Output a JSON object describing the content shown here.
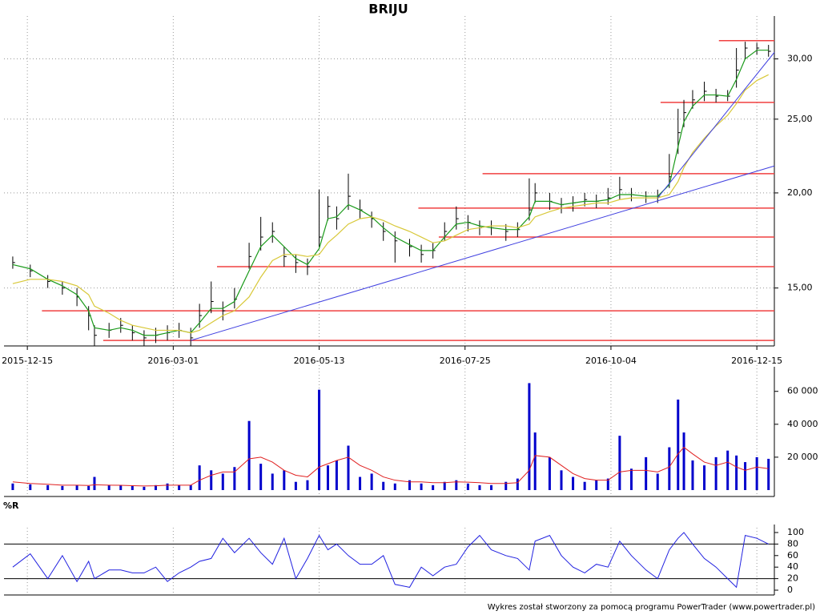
{
  "chart_data": [
    {
      "type": "ohlc",
      "title": "BRIJU",
      "log_scale": true,
      "grid": true,
      "color": "#000000",
      "xlim": [
        -2,
        262
      ],
      "xticks": [
        {
          "value": 6,
          "label": "2015-12-15"
        },
        {
          "value": 56,
          "label": "2016-03-01"
        },
        {
          "value": 106,
          "label": "2016-05-13"
        },
        {
          "value": 156,
          "label": "2016-07-25"
        },
        {
          "value": 206,
          "label": "2016-10-04"
        },
        {
          "value": 256,
          "label": "2016-12-15"
        }
      ],
      "ylim": [
        12.65,
        33.5
      ],
      "yticks": [
        {
          "value": 15,
          "label": "15,00"
        },
        {
          "value": 20,
          "label": "20,00"
        },
        {
          "value": 25,
          "label": "25,00"
        },
        {
          "value": 30,
          "label": "30,00"
        }
      ],
      "x": [
        1,
        7,
        13,
        18,
        23,
        27,
        29,
        34,
        38,
        42,
        46,
        50,
        54,
        58,
        62,
        65,
        69,
        73,
        77,
        82,
        86,
        90,
        94,
        98,
        102,
        106,
        109,
        112,
        116,
        120,
        124,
        128,
        132,
        137,
        141,
        145,
        149,
        153,
        157,
        161,
        165,
        170,
        174,
        178,
        180,
        185,
        189,
        193,
        197,
        201,
        205,
        209,
        213,
        218,
        222,
        226,
        229,
        231,
        234,
        238,
        242,
        246,
        249,
        252,
        256,
        260
      ],
      "high": [
        16.5,
        16.1,
        15.6,
        15.3,
        15.0,
        14.2,
        13.4,
        13.5,
        13.7,
        13.4,
        13.2,
        13.3,
        13.4,
        13.5,
        13.3,
        14.3,
        15.3,
        14.4,
        15.0,
        17.2,
        18.6,
        18.3,
        17.0,
        16.6,
        16.4,
        20.2,
        19.8,
        19.2,
        21.2,
        19.6,
        18.9,
        18.3,
        17.8,
        17.4,
        17.1,
        17.2,
        18.3,
        19.2,
        18.7,
        18.4,
        18.4,
        18.2,
        18.3,
        20.9,
        20.6,
        20.0,
        19.7,
        19.8,
        20.0,
        19.9,
        20.3,
        21.0,
        20.3,
        20.1,
        20.2,
        22.5,
        25.8,
        26.5,
        27.3,
        28.0,
        27.4,
        27.3,
        31.0,
        31.6,
        31.5,
        31.3
      ],
      "low": [
        15.9,
        15.5,
        15.0,
        14.7,
        14.2,
        13.2,
        12.6,
        12.9,
        13.1,
        12.8,
        12.6,
        12.7,
        12.8,
        12.9,
        12.6,
        13.3,
        13.9,
        13.6,
        14.1,
        15.9,
        16.8,
        17.2,
        16.0,
        15.7,
        15.6,
        17.0,
        18.4,
        17.9,
        19.0,
        18.5,
        18.0,
        17.3,
        16.2,
        16.5,
        16.2,
        16.4,
        17.3,
        17.9,
        17.8,
        17.6,
        17.6,
        17.3,
        17.5,
        18.4,
        19.4,
        19.0,
        18.8,
        18.9,
        19.2,
        19.1,
        19.3,
        19.6,
        19.5,
        19.4,
        19.4,
        20.3,
        22.5,
        24.4,
        25.8,
        26.4,
        26.3,
        26.4,
        27.5,
        30.0,
        30.4,
        30.2
      ],
      "close": [
        16.2,
        15.8,
        15.3,
        15.0,
        14.6,
        13.8,
        13.0,
        13.2,
        13.4,
        13.1,
        12.9,
        13.0,
        13.1,
        13.2,
        12.9,
        13.8,
        14.4,
        14.0,
        14.5,
        16.5,
        17.5,
        17.8,
        16.5,
        16.2,
        16.0,
        17.5,
        19.2,
        18.5,
        19.8,
        19.0,
        18.5,
        17.8,
        17.3,
        17.0,
        16.6,
        16.8,
        17.8,
        18.5,
        18.3,
        18.0,
        18.0,
        17.8,
        17.9,
        19.0,
        20.0,
        19.5,
        19.3,
        19.4,
        19.6,
        19.5,
        19.7,
        20.2,
        19.9,
        19.8,
        19.8,
        21.0,
        24.0,
        25.5,
        26.5,
        27.2,
        26.8,
        26.8,
        29.0,
        31.0,
        31.0,
        30.7
      ],
      "moving_averages": [
        {
          "color": "#1a9a1a",
          "values": [
            16.1,
            15.9,
            15.4,
            15.1,
            14.7,
            14.0,
            13.3,
            13.2,
            13.3,
            13.2,
            13.0,
            13.0,
            13.1,
            13.2,
            13.1,
            13.5,
            14.1,
            14.1,
            14.4,
            15.8,
            17.0,
            17.6,
            17.0,
            16.4,
            16.1,
            16.9,
            18.5,
            18.6,
            19.3,
            19.0,
            18.6,
            18.0,
            17.5,
            17.1,
            16.8,
            16.8,
            17.5,
            18.2,
            18.3,
            18.1,
            18.0,
            17.9,
            17.9,
            18.6,
            19.5,
            19.5,
            19.3,
            19.4,
            19.5,
            19.5,
            19.6,
            19.9,
            19.9,
            19.8,
            19.8,
            20.5,
            23.0,
            24.8,
            26.0,
            26.9,
            26.9,
            26.8,
            28.2,
            30.0,
            30.8,
            30.8
          ]
        },
        {
          "color": "#d8c838",
          "values": [
            15.2,
            15.4,
            15.4,
            15.3,
            15.1,
            14.7,
            14.2,
            13.9,
            13.6,
            13.4,
            13.3,
            13.2,
            13.2,
            13.2,
            13.1,
            13.2,
            13.5,
            13.8,
            14.0,
            14.6,
            15.5,
            16.3,
            16.6,
            16.6,
            16.5,
            16.6,
            17.2,
            17.6,
            18.2,
            18.5,
            18.6,
            18.4,
            18.1,
            17.8,
            17.5,
            17.2,
            17.3,
            17.6,
            17.9,
            18.0,
            18.1,
            18.1,
            18.0,
            18.2,
            18.6,
            18.9,
            19.1,
            19.2,
            19.3,
            19.4,
            19.4,
            19.6,
            19.7,
            19.7,
            19.7,
            19.9,
            20.7,
            21.6,
            22.6,
            23.6,
            24.5,
            25.3,
            26.2,
            27.3,
            28.1,
            28.6
          ]
        }
      ],
      "levels": [
        {
          "x": 243,
          "y": 31.7,
          "color": "#f04040"
        },
        {
          "x": 223,
          "y": 26.3,
          "color": "#f04040"
        },
        {
          "x": 162,
          "y": 21.2,
          "color": "#f04040"
        },
        {
          "x": 140,
          "y": 19.1,
          "color": "#f04040"
        },
        {
          "x": 147,
          "y": 17.5,
          "color": "#f04040"
        },
        {
          "x": 71,
          "y": 16.0,
          "color": "#f04040"
        },
        {
          "x": 11,
          "y": 14.0,
          "color": "#f04040"
        },
        {
          "x": 32,
          "y": 12.8,
          "color": "#f04040"
        }
      ],
      "trend_lines": [
        {
          "x": [
            62,
            262
          ],
          "y": [
            12.8,
            21.7
          ],
          "color": "#4040e0"
        },
        {
          "x": [
            222,
            262
          ],
          "y": [
            19.7,
            30.6
          ],
          "color": "#4040e0"
        }
      ]
    },
    {
      "type": "bar",
      "color": "#0000cc",
      "ylim": [
        0,
        73000
      ],
      "yticks": [
        {
          "value": 20000,
          "label": "20 000"
        },
        {
          "value": 40000,
          "label": "40 000"
        },
        {
          "value": 60000,
          "label": "60 000"
        }
      ],
      "values": [
        4000,
        3500,
        3000,
        2500,
        3000,
        2500,
        8000,
        3000,
        3000,
        2500,
        2000,
        3000,
        4000,
        3000,
        3000,
        15000,
        12000,
        10000,
        14000,
        42000,
        16000,
        10000,
        12000,
        5000,
        6000,
        61000,
        15000,
        18000,
        27000,
        8000,
        10000,
        5000,
        4000,
        6000,
        4000,
        3000,
        5000,
        6000,
        4000,
        3000,
        3000,
        5000,
        7000,
        65000,
        35000,
        20000,
        12000,
        8000,
        5000,
        6000,
        7000,
        33000,
        13000,
        20000,
        10000,
        26000,
        55000,
        35000,
        18000,
        15000,
        20000,
        24000,
        21000,
        17000,
        20000,
        19000
      ],
      "moving_average": {
        "color": "#e02020",
        "values": [
          5000,
          4000,
          3500,
          3000,
          3000,
          2800,
          3200,
          3000,
          2900,
          2700,
          2500,
          2600,
          3000,
          3000,
          3000,
          6000,
          9000,
          11000,
          11000,
          19000,
          20000,
          17000,
          12000,
          9000,
          8000,
          14000,
          16000,
          18000,
          20000,
          15000,
          12000,
          8000,
          6000,
          5000,
          5000,
          4500,
          4500,
          5000,
          4800,
          4500,
          4000,
          4000,
          4500,
          12000,
          21000,
          20000,
          15000,
          10000,
          7000,
          6000,
          6000,
          11000,
          12000,
          12000,
          11000,
          14000,
          22000,
          26000,
          22000,
          17000,
          15000,
          17000,
          14000,
          12000,
          14000,
          13000
        ]
      }
    },
    {
      "type": "line",
      "title": "%R",
      "color": "#2020e0",
      "ylim": [
        0,
        100
      ],
      "yticks": [
        0,
        20,
        40,
        60,
        80,
        100
      ],
      "reference_lines": [
        20,
        80
      ],
      "values": [
        40,
        63,
        20,
        60,
        15,
        50,
        20,
        35,
        35,
        30,
        30,
        40,
        15,
        30,
        40,
        50,
        55,
        90,
        65,
        90,
        65,
        45,
        90,
        20,
        55,
        95,
        70,
        80,
        60,
        45,
        45,
        60,
        10,
        5,
        40,
        25,
        40,
        45,
        75,
        95,
        70,
        60,
        55,
        35,
        85,
        95,
        60,
        40,
        30,
        45,
        40,
        85,
        60,
        35,
        20,
        70,
        90,
        100,
        80,
        55,
        40,
        20,
        5,
        95,
        90,
        80
      ]
    }
  ],
  "footer": "Wykres został stworzony za pomocą programu PowerTrader (www.powertrader.pl)"
}
